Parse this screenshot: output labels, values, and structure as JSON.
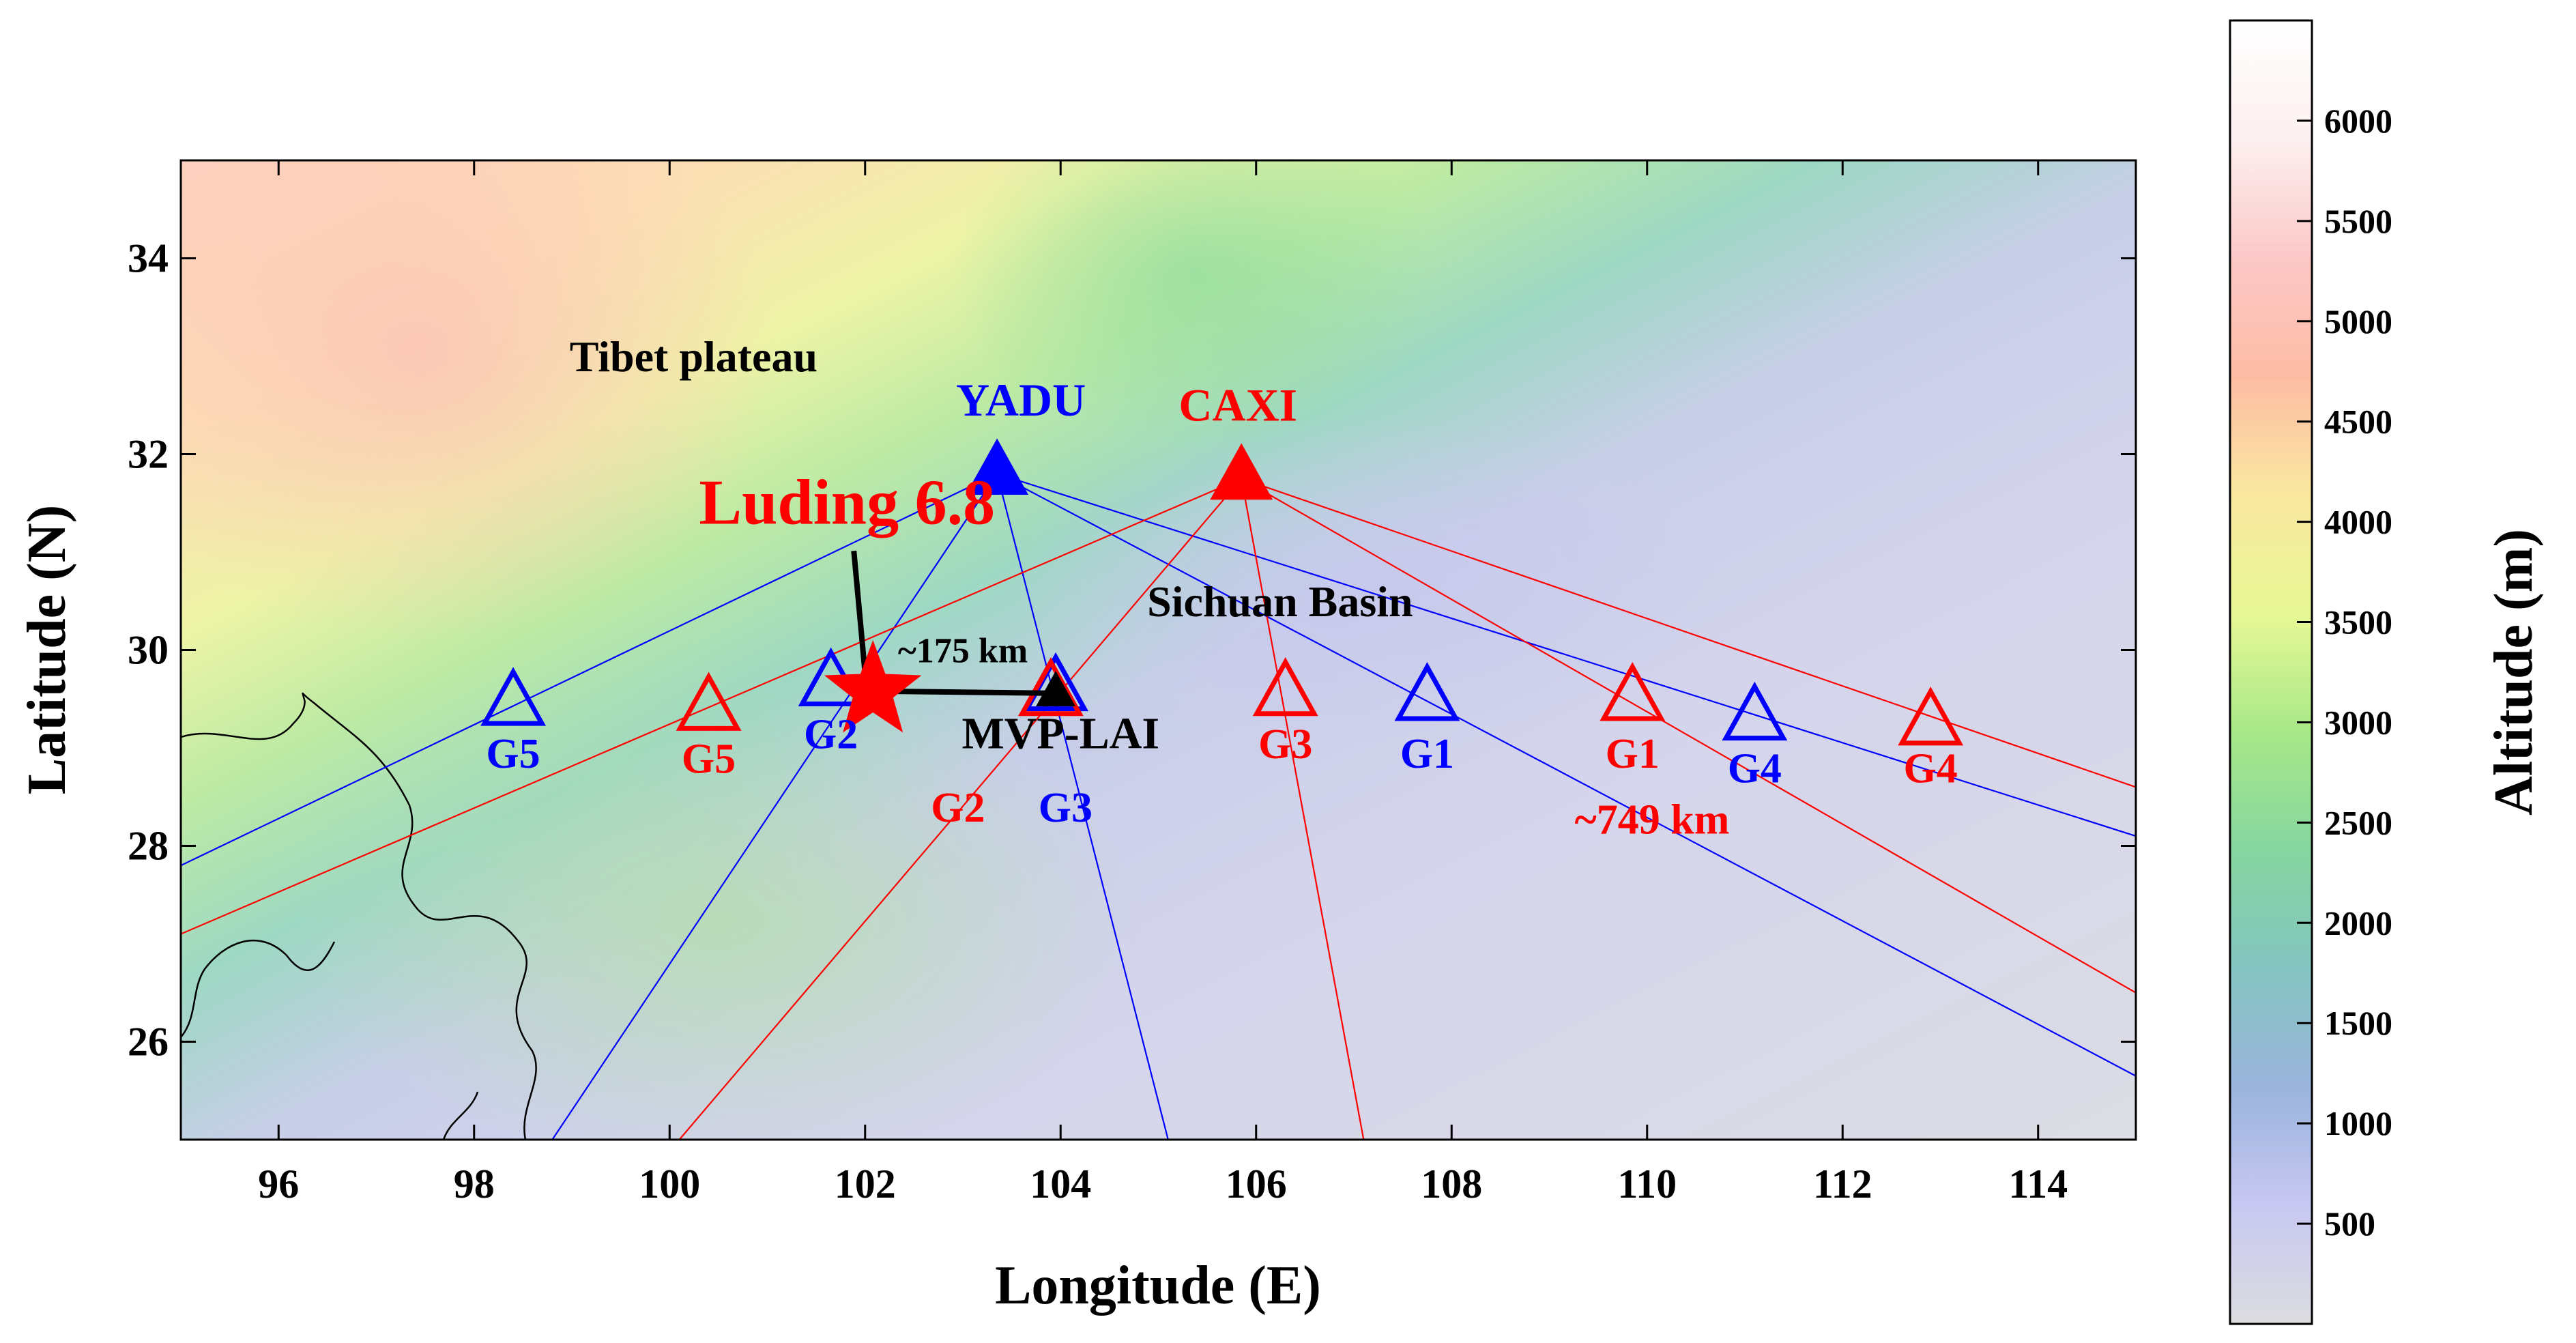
{
  "axes": {
    "xlabel": "Longitude (E)",
    "ylabel": "Latitude (N)",
    "xlim": [
      95,
      115
    ],
    "ylim": [
      25,
      35
    ],
    "xticks": [
      96,
      98,
      100,
      102,
      104,
      106,
      108,
      110,
      112,
      114
    ],
    "yticks": [
      26,
      28,
      30,
      32,
      34
    ]
  },
  "colorbar": {
    "label": "Altitude (m)",
    "range": [
      0,
      6500
    ],
    "ticks": [
      500,
      1000,
      1500,
      2000,
      2500,
      3000,
      3500,
      4000,
      4500,
      5000,
      5500,
      6000
    ],
    "colors": [
      "#dcdce0",
      "#c8c8f2",
      "#9ab4dc",
      "#84c4c0",
      "#86d6a0",
      "#a8e888",
      "#e8f896",
      "#fae8a0",
      "#fcbca4",
      "#fcc8c8",
      "#fdf0f0",
      "#ffffff"
    ]
  },
  "region_labels": [
    {
      "text": "Tibet plateau",
      "lon": 98.5,
      "lat": 33.0
    },
    {
      "text": "Sichuan Basin",
      "lon": 104.5,
      "lat": 30.5
    }
  ],
  "epicenter": {
    "label": "Luding 6.8",
    "lon": 102.08,
    "lat": 29.58,
    "color": "#ff0000",
    "label_lon": 100.0,
    "label_lat": 31.5
  },
  "transmitters": [
    {
      "name": "YADU",
      "lon": 103.35,
      "lat": 31.8,
      "color": "#0000ff"
    },
    {
      "name": "CAXI",
      "lon": 105.85,
      "lat": 31.75,
      "color": "#ff0000"
    }
  ],
  "receivers": [
    {
      "name": "G5",
      "lon": 98.4,
      "lat": 29.45,
      "color": "#0000ff",
      "label_lon": 98.4,
      "label_lat": 28.95
    },
    {
      "name": "G2",
      "lon": 101.65,
      "lat": 29.65,
      "color": "#0000ff",
      "label_lon": 101.65,
      "label_lat": 29.15
    },
    {
      "name": "G3",
      "lon": 103.95,
      "lat": 29.6,
      "color": "#0000ff",
      "label_lon": 104.05,
      "label_lat": 28.4
    },
    {
      "name": "G1",
      "lon": 107.75,
      "lat": 29.5,
      "color": "#0000ff",
      "label_lon": 107.75,
      "label_lat": 28.95
    },
    {
      "name": "G4",
      "lon": 111.1,
      "lat": 29.3,
      "color": "#0000ff",
      "label_lon": 111.1,
      "label_lat": 28.8
    },
    {
      "name": "G5",
      "lon": 100.4,
      "lat": 29.4,
      "color": "#ff0000",
      "label_lon": 100.4,
      "label_lat": 28.9
    },
    {
      "name": "G2",
      "lon": 103.9,
      "lat": 29.55,
      "color": "#ff0000",
      "label_lon": 102.95,
      "label_lat": 28.4
    },
    {
      "name": "G3",
      "lon": 106.3,
      "lat": 29.55,
      "color": "#ff0000",
      "label_lon": 106.3,
      "label_lat": 29.05
    },
    {
      "name": "G1",
      "lon": 109.85,
      "lat": 29.5,
      "color": "#ff0000",
      "label_lon": 109.85,
      "label_lat": 28.95
    },
    {
      "name": "G4",
      "lon": 112.9,
      "lat": 29.25,
      "color": "#ff0000",
      "label_lon": 112.9,
      "label_lat": 28.8
    }
  ],
  "station": {
    "name": "MVP-LAI",
    "lon": 103.95,
    "lat": 29.6,
    "color": "#000000",
    "label_lon": 104.0,
    "label_lat": 29.15
  },
  "distance_labels": [
    {
      "text": "~175 km",
      "lon": 103.0,
      "lat": 30.0,
      "color": "#000000"
    },
    {
      "text": "~749 km",
      "lon": 110.05,
      "lat": 28.25,
      "color": "#ff0000"
    }
  ],
  "paths": [
    {
      "from": [
        103.35,
        31.8
      ],
      "to": [
        95.0,
        27.8
      ],
      "color": "#0000ff"
    },
    {
      "from": [
        103.35,
        31.8
      ],
      "to": [
        98.8,
        25.0
      ],
      "color": "#0000ff"
    },
    {
      "from": [
        103.35,
        31.8
      ],
      "to": [
        105.1,
        25.0
      ],
      "color": "#0000ff"
    },
    {
      "from": [
        103.35,
        31.8
      ],
      "to": [
        115.0,
        25.65
      ],
      "color": "#0000ff"
    },
    {
      "from": [
        103.35,
        31.8
      ],
      "to": [
        115.0,
        28.1
      ],
      "color": "#0000ff"
    },
    {
      "from": [
        105.85,
        31.75
      ],
      "to": [
        95.0,
        27.1
      ],
      "color": "#ff0000"
    },
    {
      "from": [
        105.85,
        31.75
      ],
      "to": [
        100.1,
        25.0
      ],
      "color": "#ff0000"
    },
    {
      "from": [
        105.85,
        31.75
      ],
      "to": [
        107.1,
        25.0
      ],
      "color": "#ff0000"
    },
    {
      "from": [
        105.85,
        31.75
      ],
      "to": [
        115.0,
        26.5
      ],
      "color": "#ff0000"
    },
    {
      "from": [
        105.85,
        31.75
      ],
      "to": [
        115.0,
        28.6
      ],
      "color": "#ff0000"
    }
  ]
}
